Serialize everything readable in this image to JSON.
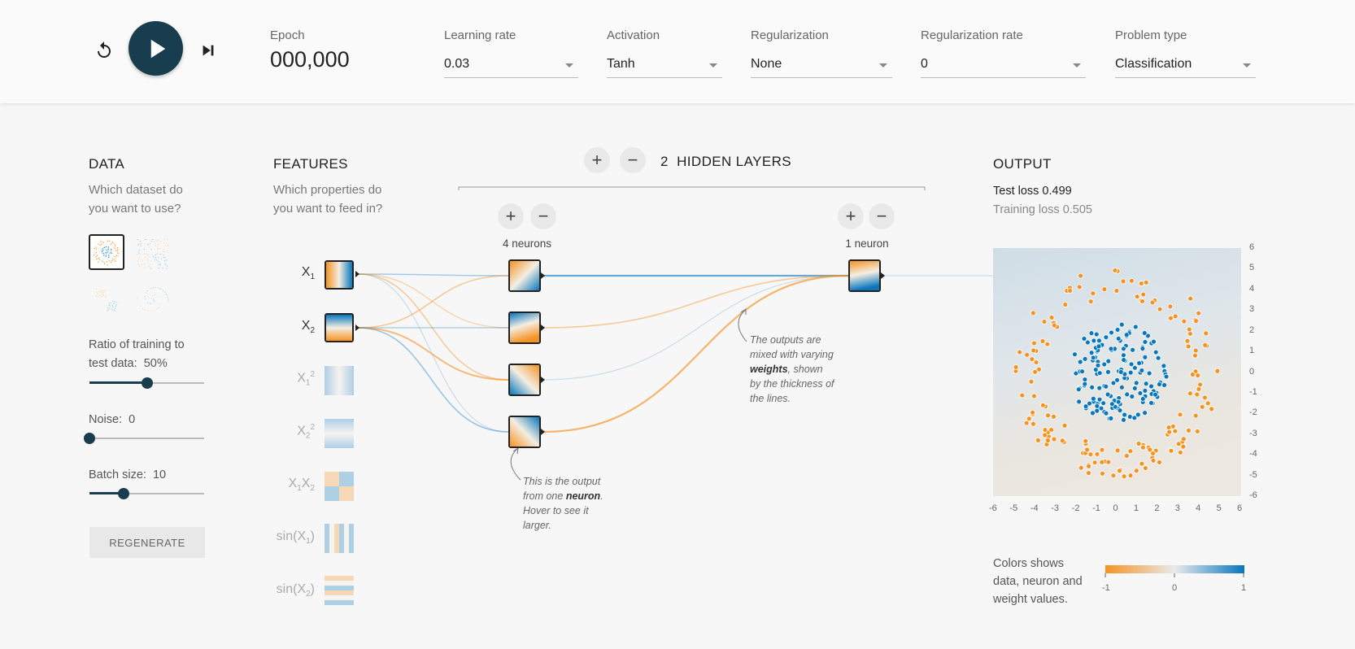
{
  "controls": {
    "reset_icon": "reset-icon",
    "play_icon": "play-icon",
    "step_icon": "step-forward-icon"
  },
  "epoch": {
    "label": "Epoch",
    "value": "000,000"
  },
  "selects": {
    "learning_rate": {
      "label": "Learning rate",
      "value": "0.03"
    },
    "activation": {
      "label": "Activation",
      "value": "Tanh"
    },
    "regularization": {
      "label": "Regularization",
      "value": "None"
    },
    "regularization_rate": {
      "label": "Regularization rate",
      "value": "0"
    },
    "problem_type": {
      "label": "Problem type",
      "value": "Classification"
    }
  },
  "data": {
    "title": "DATA",
    "subtitle_1": "Which dataset do",
    "subtitle_2": "you want to use?",
    "datasets": [
      "circle",
      "xor",
      "gaussian",
      "spiral"
    ],
    "selected_dataset": "circle",
    "ratio_label_1": "Ratio of training to",
    "ratio_label_2": "test data:",
    "ratio_value": "50%",
    "ratio_fraction": 0.5,
    "noise_label": "Noise:",
    "noise_value": "0",
    "noise_fraction": 0.0,
    "batch_label": "Batch size:",
    "batch_value": "10",
    "batch_fraction": 0.3,
    "regenerate": "REGENERATE"
  },
  "features": {
    "title": "FEATURES",
    "subtitle_1": "Which properties do",
    "subtitle_2": "you want to feed in?",
    "items": [
      {
        "id": "x1",
        "label": "X1",
        "active": true
      },
      {
        "id": "x2",
        "label": "X2",
        "active": true
      },
      {
        "id": "x1sq",
        "label": "X12",
        "active": false
      },
      {
        "id": "x2sq",
        "label": "X22",
        "active": false
      },
      {
        "id": "x1x2",
        "label": "X1X2",
        "active": false
      },
      {
        "id": "sinx1",
        "label": "sin(X1)",
        "active": false
      },
      {
        "id": "sinx2",
        "label": "sin(X2)",
        "active": false
      }
    ]
  },
  "network": {
    "add_layer": "+",
    "remove_layer": "−",
    "hidden_layers_count": "2",
    "hidden_layers_label": "HIDDEN LAYERS",
    "layer1_neurons": "4 neurons",
    "layer2_neurons": "1 neuron",
    "callout_neuron": [
      "This is the output",
      "from one",
      "neuron",
      ".",
      "Hover to see it",
      "larger."
    ],
    "callout_weights": [
      "The outputs are",
      "mixed with varying",
      "weights",
      ", shown",
      "by the thickness of",
      "the lines."
    ]
  },
  "output": {
    "title": "OUTPUT",
    "test_loss": "Test loss 0.499",
    "training_loss": "Training loss 0.505",
    "axis_ticks": [
      "-6",
      "-5",
      "-4",
      "-3",
      "-2",
      "-1",
      "0",
      "1",
      "2",
      "3",
      "4",
      "5",
      "6"
    ],
    "legend_line_1": "Colors shows",
    "legend_line_2": "data, neuron and",
    "legend_line_3": "weight values.",
    "legend_min": "-1",
    "legend_mid": "0",
    "legend_max": "1"
  },
  "colors": {
    "orange": "#f59322",
    "blue": "#0877bd",
    "dark": "#183d4e"
  }
}
